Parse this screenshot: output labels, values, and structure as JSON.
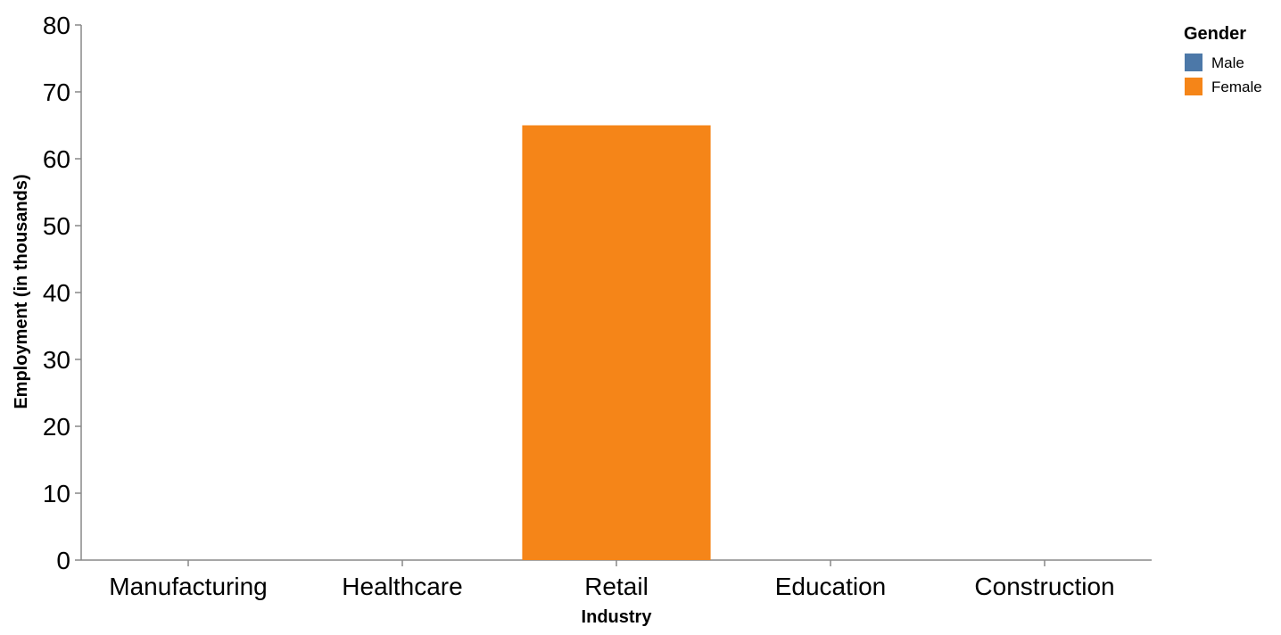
{
  "chart_data": {
    "type": "bar",
    "title": "",
    "xlabel": "Industry",
    "ylabel": "Employment (in thousands)",
    "categories": [
      "Manufacturing",
      "Healthcare",
      "Retail",
      "Education",
      "Construction"
    ],
    "ylim": [
      0,
      80
    ],
    "yticks": [
      0,
      10,
      20,
      30,
      40,
      50,
      60,
      70,
      80
    ],
    "series": [
      {
        "name": "Male",
        "color": "#4c78a8",
        "values": [
          0,
          0,
          0,
          0,
          0
        ]
      },
      {
        "name": "Female",
        "color": "#f58518",
        "values": [
          0,
          0,
          65,
          0,
          0
        ]
      }
    ],
    "legend": {
      "title": "Gender",
      "position": "top-right"
    },
    "grid": false
  }
}
